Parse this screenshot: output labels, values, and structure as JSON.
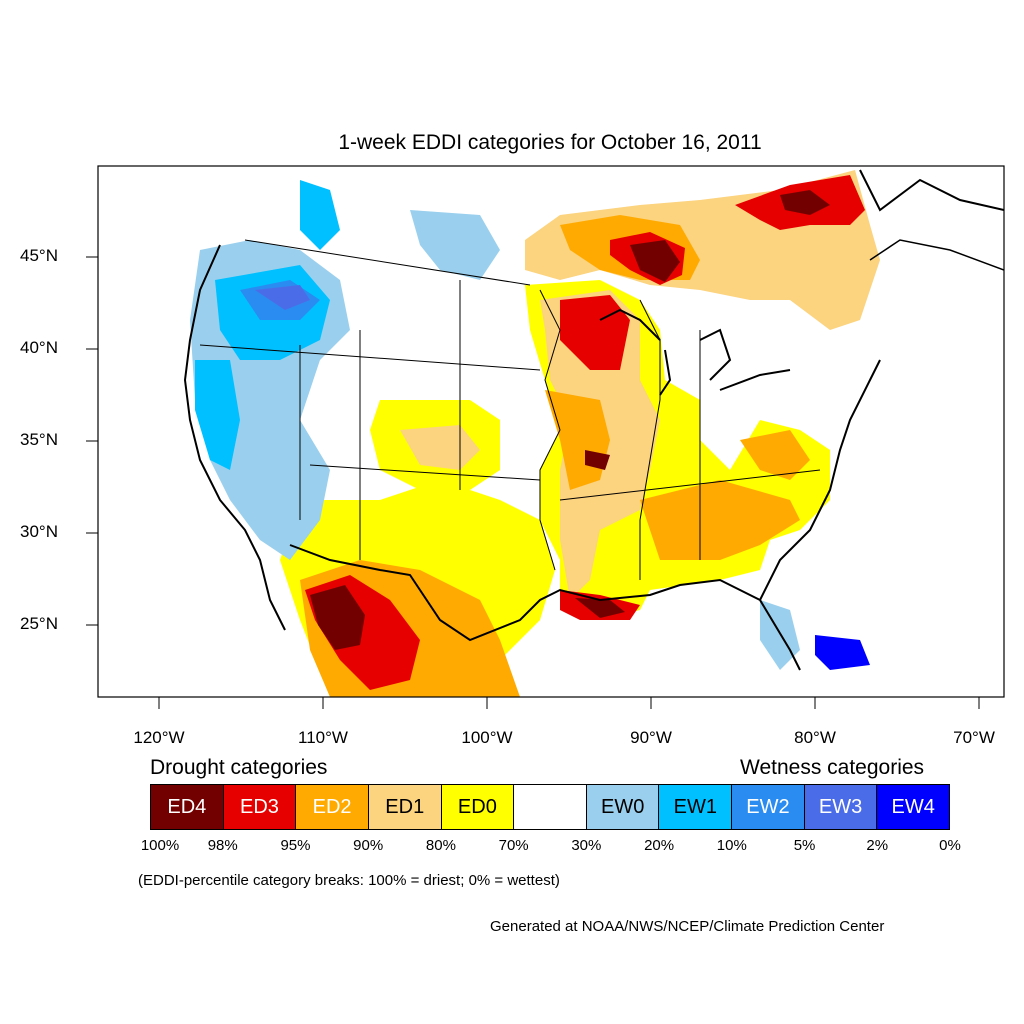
{
  "title": "1-week EDDI categories for October 16, 2011",
  "lat_labels": [
    "45°N",
    "40°N",
    "35°N",
    "30°N",
    "25°N"
  ],
  "lon_labels": [
    "120°W",
    "110°W",
    "100°W",
    "90°W",
    "80°W",
    "70°W"
  ],
  "legend": {
    "drought_heading": "Drought categories",
    "wetness_heading": "Wetness categories",
    "categories": [
      {
        "label": "ED4",
        "color": "#730000",
        "text_color": "#ffffff"
      },
      {
        "label": "ED3",
        "color": "#e60000",
        "text_color": "#ffffff"
      },
      {
        "label": "ED2",
        "color": "#ffaa00",
        "text_color": "#ffffff"
      },
      {
        "label": "ED1",
        "color": "#fcd37f",
        "text_color": "#000000"
      },
      {
        "label": "ED0",
        "color": "#ffff00",
        "text_color": "#000000"
      },
      {
        "label": "",
        "color": "#ffffff",
        "text_color": "#000000"
      },
      {
        "label": "EW0",
        "color": "#9ad0ee",
        "text_color": "#000000"
      },
      {
        "label": "EW1",
        "color": "#00c0ff",
        "text_color": "#000000"
      },
      {
        "label": "EW2",
        "color": "#2a8cf0",
        "text_color": "#ffffff"
      },
      {
        "label": "EW3",
        "color": "#4b6ce8",
        "text_color": "#ffffff"
      },
      {
        "label": "EW4",
        "color": "#0000ff",
        "text_color": "#ffffff"
      }
    ],
    "percentiles": [
      "100%",
      "98%",
      "95%",
      "90%",
      "80%",
      "70%",
      "30%",
      "20%",
      "10%",
      "5%",
      "2%",
      "0%"
    ]
  },
  "note": "(EDDI-percentile category breaks: 100% = driest; 0% = wettest)",
  "credit": "Generated at NOAA/NWS/NCEP/Climate Prediction Center"
}
